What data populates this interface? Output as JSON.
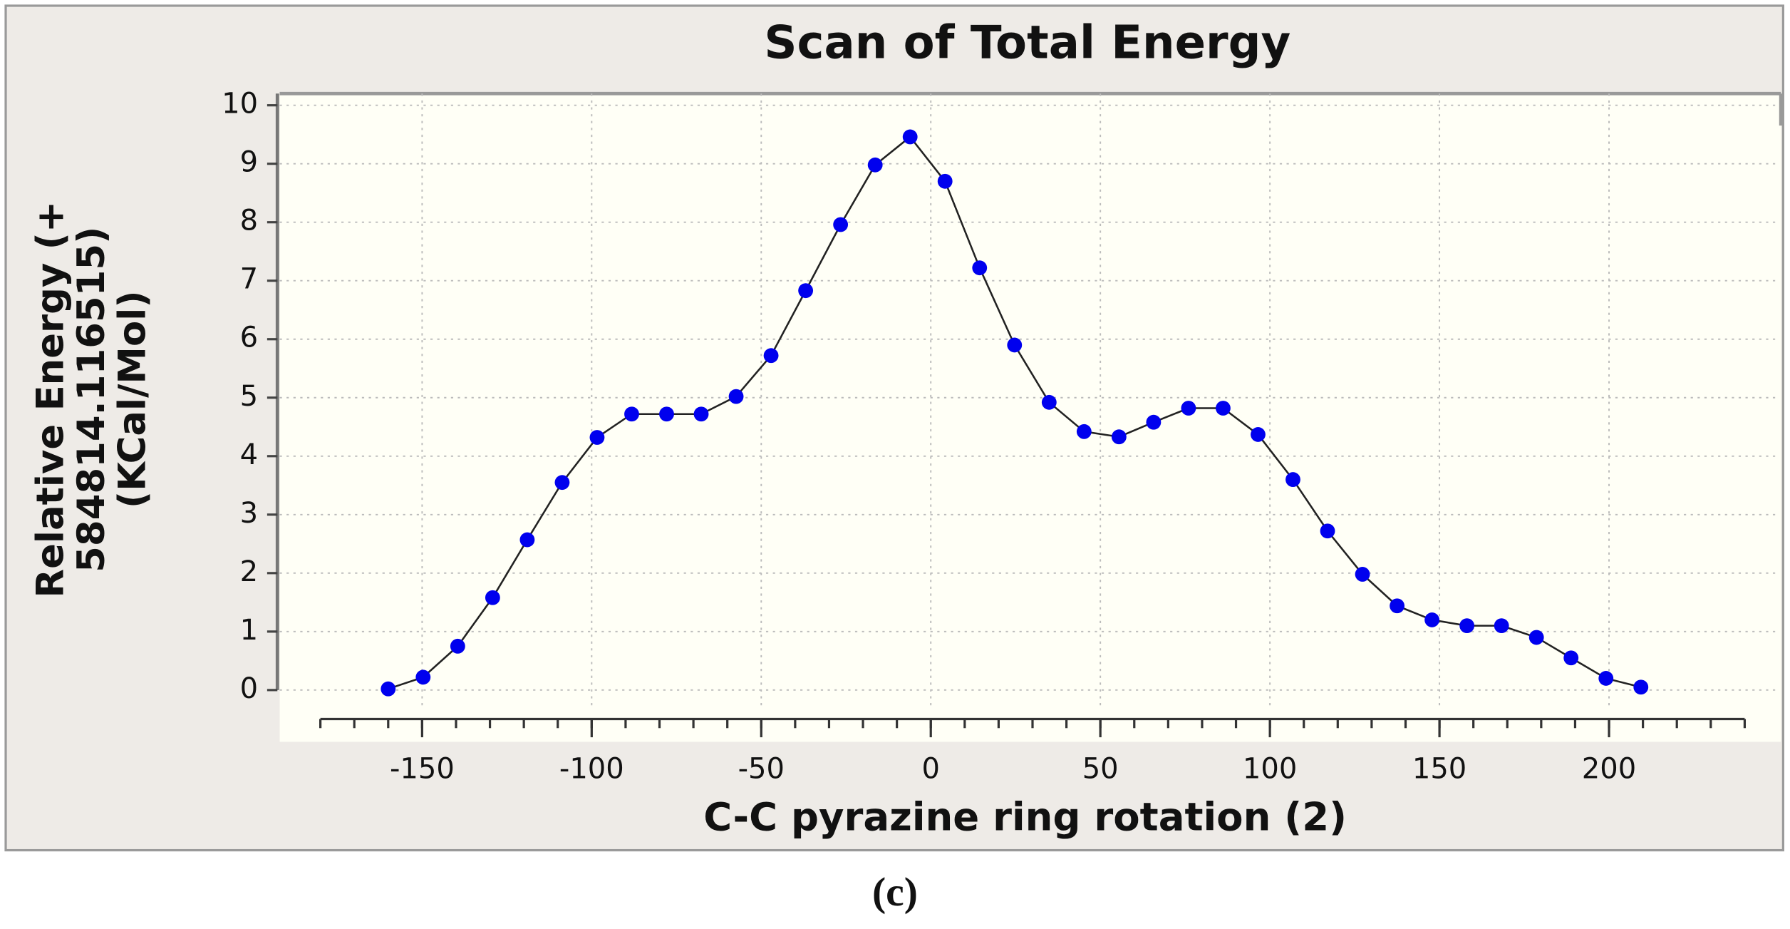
{
  "chart_data": {
    "type": "line",
    "title": "Scan of Total Energy",
    "xlabel": "C-C pyrazine ring rotation (2)",
    "ylabel_lines": [
      "Relative Energy (+",
      "584814.116515)",
      "(KCal/Mol)"
    ],
    "caption": "(c)",
    "x": [
      -160,
      -149.7,
      -139.5,
      -129.2,
      -119.0,
      -108.7,
      -98.4,
      -88.2,
      -77.9,
      -67.7,
      -57.4,
      -47.1,
      -36.9,
      -26.6,
      -16.4,
      -6.1,
      4.2,
      14.4,
      24.7,
      34.9,
      45.2,
      55.5,
      65.7,
      76.0,
      86.2,
      96.5,
      106.8,
      117.0,
      127.3,
      137.5,
      147.8,
      158.1,
      168.3,
      178.6,
      188.8,
      199.1,
      209.4
    ],
    "series": [
      {
        "name": "Total Energy",
        "color": "#0000ee",
        "line_color": "#222222",
        "values": [
          0.02,
          0.22,
          0.75,
          1.58,
          2.57,
          3.55,
          4.32,
          4.72,
          4.72,
          4.72,
          5.02,
          5.72,
          6.83,
          7.96,
          8.98,
          9.46,
          8.7,
          7.22,
          5.9,
          4.92,
          4.42,
          4.33,
          4.58,
          4.82,
          4.82,
          4.37,
          3.6,
          2.72,
          1.98,
          1.44,
          1.2,
          1.1,
          1.1,
          0.9,
          0.55,
          0.2,
          0.05
        ]
      }
    ],
    "xlim": [
      -192,
      250
    ],
    "ylim": [
      -0.3,
      10.2
    ],
    "xticks": [
      -150,
      -100,
      -50,
      0,
      50,
      100,
      150,
      200
    ],
    "x_minor_ticks": [
      -180,
      -170,
      -160,
      -150,
      -140,
      -130,
      -120,
      -110,
      -100,
      -90,
      -80,
      -70,
      -60,
      -50,
      -40,
      -30,
      -20,
      -10,
      0,
      10,
      20,
      30,
      40,
      50,
      60,
      70,
      80,
      90,
      100,
      110,
      120,
      130,
      140,
      150,
      160,
      170,
      180,
      190,
      200,
      210,
      220,
      230,
      240
    ],
    "yticks": [
      0,
      1,
      2,
      3,
      4,
      5,
      6,
      7,
      8,
      9,
      10
    ],
    "grid": true
  }
}
